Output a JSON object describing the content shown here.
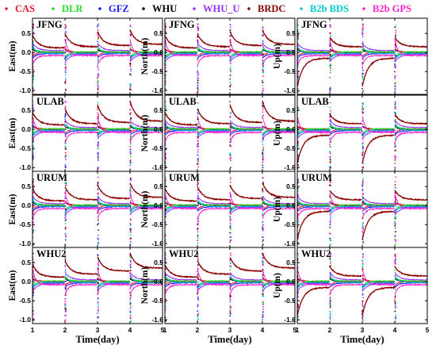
{
  "chart_data": {
    "type": "line",
    "legend": {
      "placement": "top",
      "entries": [
        {
          "name": "CAS",
          "color": "#e8192c"
        },
        {
          "name": "DLR",
          "color": "#22dd22"
        },
        {
          "name": "GFZ",
          "color": "#1a1aff"
        },
        {
          "name": "WHU",
          "color": "#000000"
        },
        {
          "name": "WHU_U",
          "color": "#9933ff"
        },
        {
          "name": "BRDC",
          "color": "#8b0000"
        },
        {
          "name": "B2b BDS",
          "color": "#00cccc"
        },
        {
          "name": "B2b GPS",
          "color": "#ff22cc"
        }
      ]
    },
    "stations": [
      "JFNG",
      "ULAB",
      "URUM",
      "WHU2"
    ],
    "components": [
      "East(m)",
      "North(m)",
      "Up(m)"
    ],
    "xlabel": "Time(day)",
    "xlim": [
      1,
      5
    ],
    "ylim": [
      -1.1,
      0.9
    ],
    "xticks": [
      "1",
      "2",
      "3",
      "4",
      "5"
    ],
    "yticks": [
      "0.5",
      "0.0",
      "-0.5",
      "-1.0"
    ],
    "grid": false
  }
}
